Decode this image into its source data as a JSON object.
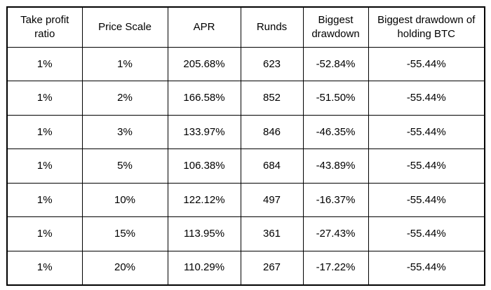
{
  "colors": {
    "border": "#000000",
    "text": "#000000",
    "background": "#ffffff"
  },
  "table": {
    "columns": [
      "Take profit ratio",
      "Price Scale",
      "APR",
      "Runds",
      "Biggest drawdown",
      "Biggest drawdown of holding BTC"
    ],
    "rows": [
      [
        "1%",
        "1%",
        "205.68%",
        "623",
        "-52.84%",
        "-55.44%"
      ],
      [
        "1%",
        "2%",
        "166.58%",
        "852",
        "-51.50%",
        "-55.44%"
      ],
      [
        "1%",
        "3%",
        "133.97%",
        "846",
        "-46.35%",
        "-55.44%"
      ],
      [
        "1%",
        "5%",
        "106.38%",
        "684",
        "-43.89%",
        "-55.44%"
      ],
      [
        "1%",
        "10%",
        "122.12%",
        "497",
        "-16.37%",
        "-55.44%"
      ],
      [
        "1%",
        "15%",
        "113.95%",
        "361",
        "-27.43%",
        "-55.44%"
      ],
      [
        "1%",
        "20%",
        "110.29%",
        "267",
        "-17.22%",
        "-55.44%"
      ]
    ]
  },
  "chart_data": {
    "type": "table",
    "title": "",
    "columns": [
      "Take profit ratio",
      "Price Scale",
      "APR",
      "Runds",
      "Biggest drawdown",
      "Biggest drawdown of holding BTC"
    ],
    "take_profit_ratio": [
      "1%",
      "1%",
      "1%",
      "1%",
      "1%",
      "1%",
      "1%"
    ],
    "price_scale": [
      "1%",
      "2%",
      "3%",
      "5%",
      "10%",
      "15%",
      "20%"
    ],
    "apr_percent": [
      205.68,
      166.58,
      133.97,
      106.38,
      122.12,
      113.95,
      110.29
    ],
    "runds": [
      623,
      852,
      846,
      684,
      497,
      361,
      267
    ],
    "biggest_drawdown_percent": [
      -52.84,
      -51.5,
      -46.35,
      -43.89,
      -16.37,
      -27.43,
      -17.22
    ],
    "biggest_drawdown_holding_btc_percent": [
      -55.44,
      -55.44,
      -55.44,
      -55.44,
      -55.44,
      -55.44,
      -55.44
    ]
  }
}
